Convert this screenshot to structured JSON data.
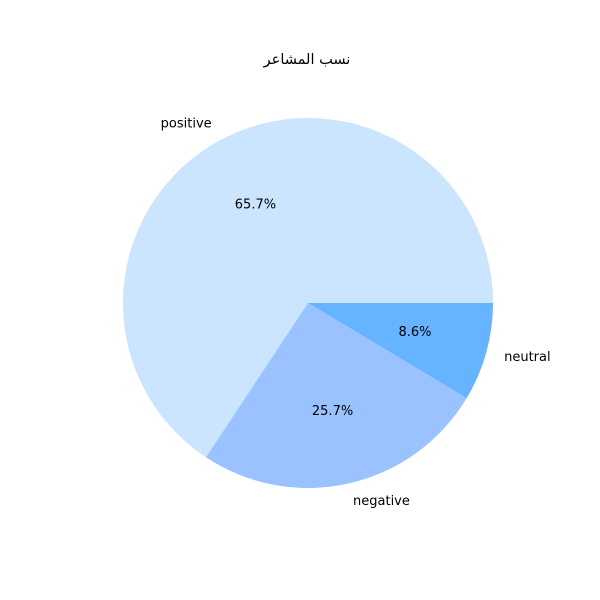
{
  "chart_data": {
    "type": "pie",
    "title": "نسب المشاعر",
    "categories": [
      "positive",
      "negative",
      "neutral"
    ],
    "values": [
      65.7,
      25.7,
      8.6
    ],
    "percent_labels": [
      "65.7%",
      "25.7%",
      "8.6%"
    ],
    "colors": [
      "#cce5ff",
      "#99c2ff",
      "#66b3ff"
    ]
  }
}
